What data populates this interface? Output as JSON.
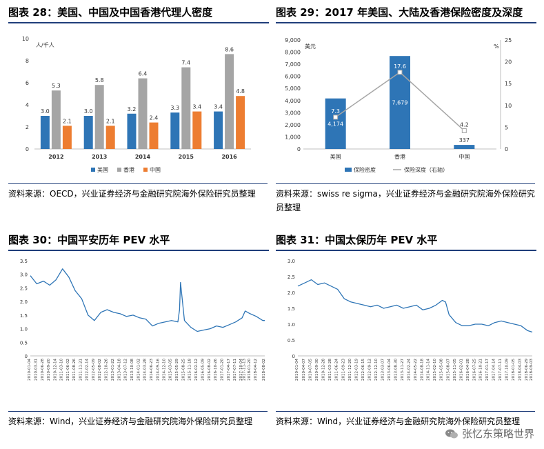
{
  "chart_data": [
    {
      "id": "fig28",
      "type": "bar",
      "title": "图表 28：美国、中国及中国香港代理人密度",
      "ylabel": "人/千人",
      "ylim": [
        0,
        10
      ],
      "yticks": [
        0,
        2,
        4,
        6,
        8,
        10
      ],
      "categories": [
        "2012",
        "2013",
        "2014",
        "2015",
        "2016"
      ],
      "series": [
        {
          "name": "美国",
          "color": "#2e75b6",
          "values": [
            3.0,
            3.0,
            3.2,
            3.3,
            3.4
          ],
          "labels": [
            "3.0",
            "3.0",
            "3.2",
            "3.3",
            "3.4"
          ]
        },
        {
          "name": "香港",
          "color": "#a5a5a5",
          "values": [
            5.3,
            5.8,
            6.4,
            7.4,
            8.6
          ],
          "labels": [
            "5.3",
            "5.8",
            "6.4",
            "7.4",
            "8.6"
          ]
        },
        {
          "name": "中国",
          "color": "#ed7d31",
          "values": [
            2.1,
            2.1,
            2.4,
            3.4,
            4.8
          ],
          "labels": [
            "2.1",
            "2.1",
            "2.4",
            "3.4",
            "4.8"
          ]
        }
      ],
      "legend": "bottom",
      "source": "资料来源：OECD，兴业证券经济与金融研究院海外保险研究员整理"
    },
    {
      "id": "fig29",
      "type": "bar+line",
      "title": "图表 29：2017 年美国、大陆及香港保险密度及深度",
      "ylabel_left": "美元",
      "ylabel_right": "%",
      "ylim_left": [
        0,
        9000
      ],
      "yticks_left": [
        0,
        1000,
        2000,
        3000,
        4000,
        5000,
        6000,
        7000,
        8000,
        9000
      ],
      "ytick_labels_left": [
        "0",
        "1,000",
        "2,000",
        "3,000",
        "4,000",
        "5,000",
        "6,000",
        "7,000",
        "8,000",
        "9,000"
      ],
      "ylim_right": [
        0,
        25
      ],
      "yticks_right": [
        0,
        5,
        10,
        15,
        20,
        25
      ],
      "categories": [
        "美国",
        "香港",
        "中国"
      ],
      "bars": {
        "name": "保险密度",
        "color": "#2e75b6",
        "values": [
          4174,
          7679,
          337
        ],
        "labels": [
          "4,174",
          "7,679",
          "337"
        ]
      },
      "line": {
        "name": "保险深度（右轴）",
        "color": "#a5a5a5",
        "values": [
          7.3,
          17.6,
          4.2
        ],
        "labels": [
          "7.3",
          "17.6",
          "4.2"
        ]
      },
      "legend": "bottom",
      "source": "资料来源：swiss re sigma，兴业证券经济与金融研究院海外保险研究员整理"
    },
    {
      "id": "fig30",
      "type": "line",
      "title": "图表 30：中国平安历年 PEV 水平",
      "ylim": [
        0,
        3.5
      ],
      "yticks": [
        0,
        0.5,
        1.0,
        1.5,
        2.0,
        2.5,
        3.0,
        3.5
      ],
      "ytick_labels": [
        "0",
        "0.5",
        "1.0",
        "1.5",
        "2.0",
        "2.5",
        "3.0",
        "3.5"
      ],
      "color": "#2e75b6",
      "x": [
        "2010-01-04",
        "2010-03-31",
        "2010-06-28",
        "2010-09-20",
        "2010-12-14",
        "2011-03-10",
        "2011-06-02",
        "2011-08-26",
        "2011-11-21",
        "2012-02-14",
        "2012-05-09",
        "2012-08-02",
        "2012-10-26",
        "2013-01-22",
        "2013-04-18",
        "2013-07-12",
        "2013-10-08",
        "2014-01-02",
        "2014-03-28",
        "2014-06-23",
        "2014-09-16",
        "2014-12-10",
        "2015-03-05",
        "2015-05-29",
        "2015-06-20",
        "2015-07-03",
        "2015-08-25",
        "2015-11-18",
        "2016-02-12",
        "2016-05-09",
        "2016-08-02",
        "2016-10-26",
        "2017-01-20",
        "2017-04-17",
        "2017-07-11",
        "2017-10-04",
        "2017-11-13",
        "2018-01-20",
        "2018-04-12",
        "2018-07-06",
        "2018-08-02"
      ],
      "values": [
        2.95,
        2.65,
        2.75,
        2.6,
        2.8,
        3.2,
        2.9,
        2.4,
        2.1,
        1.5,
        1.3,
        1.6,
        1.7,
        1.6,
        1.55,
        1.45,
        1.5,
        1.4,
        1.35,
        1.1,
        1.2,
        1.25,
        1.3,
        1.25,
        1.7,
        2.7,
        1.3,
        1.05,
        0.9,
        0.95,
        1.0,
        1.1,
        1.05,
        1.15,
        1.25,
        1.4,
        1.65,
        1.55,
        1.45,
        1.3,
        1.3
      ],
      "xtick_labels": [
        "2010-01-04",
        "2010-03-31",
        "2010-06-28",
        "2010-09-20",
        "2010-12-14",
        "2011-03-10",
        "2011-06-02",
        "2011-08-26",
        "2011-11-21",
        "2012-02-14",
        "2012-05-09",
        "2012-08-02",
        "2012-10-26",
        "2013-01-22",
        "2013-04-18",
        "2013-07-12",
        "2013-10-08",
        "2014-01-02",
        "2014-03-28",
        "2014-06-23",
        "2014-09-16",
        "2014-12-10",
        "2015-03-05",
        "2015-05-29",
        "2015-08-25",
        "2015-11-18",
        "2016-02-12",
        "2016-05-09",
        "2016-08-02",
        "2016-10-26",
        "2017-01-20",
        "2017-04-17",
        "2017-07-11",
        "2017-10-04",
        "2017-11-13",
        "2018-01-20",
        "2018-04-12",
        "2018-08-02"
      ],
      "source": "资料来源：Wind，兴业证券经济与金融研究院海外保险研究员整理"
    },
    {
      "id": "fig31",
      "type": "line",
      "title": "图表 31：中国太保历年 PEV 水平",
      "ylim": [
        0,
        3.0
      ],
      "yticks": [
        0,
        0.5,
        1.0,
        1.5,
        2.0,
        2.5,
        3.0
      ],
      "ytick_labels": [
        "0",
        "0.5",
        "1.0",
        "1.5",
        "2.0",
        "2.5",
        "3.0"
      ],
      "color": "#2e75b6",
      "x": [
        "2010-01-04",
        "2010-04-07",
        "2010-07-05",
        "2010-09-30",
        "2010-12-28",
        "2011-03-28",
        "2011-06-24",
        "2011-09-23",
        "2011-12-20",
        "2012-03-19",
        "2012-06-15",
        "2012-09-12",
        "2012-12-10",
        "2013-03-07",
        "2013-06-04",
        "2013-08-30",
        "2013-11-27",
        "2014-02-24",
        "2014-05-22",
        "2014-08-18",
        "2014-11-14",
        "2015-02-10",
        "2015-05-08",
        "2015-06-20",
        "2015-08-07",
        "2015-11-05",
        "2016-02-01",
        "2016-04-28",
        "2016-07-25",
        "2016-10-21",
        "2017-01-17",
        "2017-04-14",
        "2017-07-11",
        "2017-10-09",
        "2018-01-05",
        "2018-04-03",
        "2018-06-29",
        "2018-09-03"
      ],
      "values": [
        2.2,
        2.3,
        2.4,
        2.25,
        2.3,
        2.2,
        2.1,
        1.8,
        1.7,
        1.65,
        1.6,
        1.55,
        1.6,
        1.5,
        1.55,
        1.6,
        1.5,
        1.55,
        1.6,
        1.45,
        1.5,
        1.6,
        1.75,
        1.7,
        1.3,
        1.05,
        0.95,
        0.95,
        1.0,
        1.0,
        0.95,
        1.05,
        1.1,
        1.05,
        1.0,
        0.95,
        0.8,
        0.75
      ],
      "xtick_labels": [
        "2010-01-04",
        "2010-04-07",
        "2010-07-05",
        "2010-09-30",
        "2010-12-28",
        "2011-03-28",
        "2011-06-24",
        "2011-09-23",
        "2011-12-20",
        "2012-03-19",
        "2012-06-15",
        "2012-09-12",
        "2012-12-10",
        "2013-03-07",
        "2013-06-04",
        "2013-08-30",
        "2013-11-27",
        "2014-02-24",
        "2014-05-22",
        "2014-08-18",
        "2014-11-14",
        "2015-02-10",
        "2015-05-08",
        "2015-08-07",
        "2015-11-05",
        "2016-02-01",
        "2016-04-28",
        "2016-07-25",
        "2016-10-21",
        "2017-01-17",
        "2017-04-14",
        "2017-07-11",
        "2017-10-09",
        "2018-01-05",
        "2018-04-03",
        "2018-06-29",
        "2018-09-03"
      ],
      "source": "资料来源：Wind，兴业证券经济与金融研究院海外保险研究员整理"
    }
  ],
  "watermark": {
    "text": "张忆东策略世界",
    "icon": "wechat-icon"
  }
}
